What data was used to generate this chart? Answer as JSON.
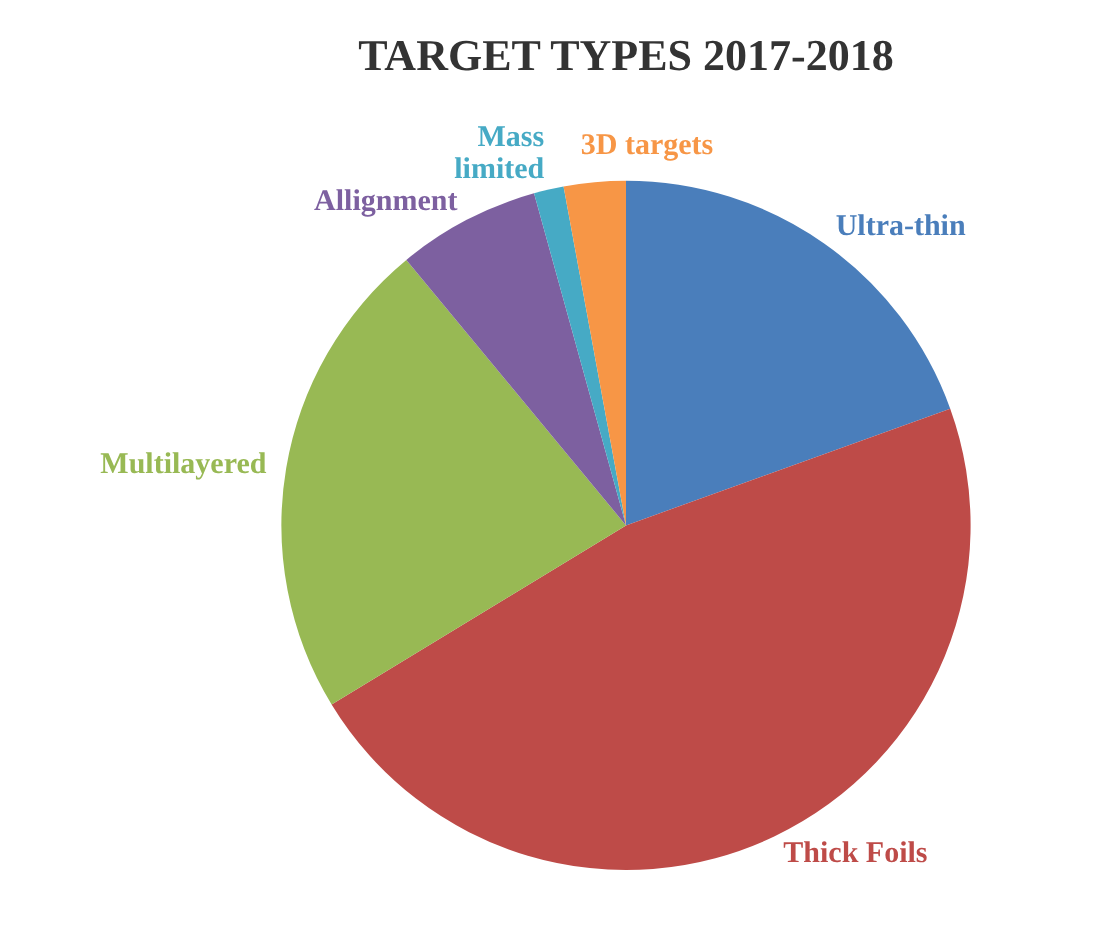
{
  "chart_data": {
    "type": "pie",
    "title": "TARGET TYPES 2017-2018",
    "categories": [
      "Ultra-thin",
      "Thick Foils",
      "Multilayered",
      "Allignment",
      "Mass limited",
      "3D targets"
    ],
    "values": [
      19.5,
      46.8,
      22.7,
      6.7,
      1.4,
      2.9
    ],
    "colors": [
      "#4a7ebb",
      "#be4b48",
      "#98b954",
      "#7d60a0",
      "#46aac5",
      "#f79646"
    ],
    "legend": false
  }
}
